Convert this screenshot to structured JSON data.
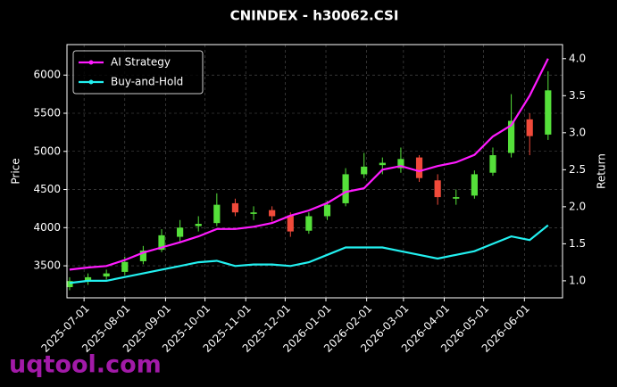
{
  "chart_data": {
    "type": "candlestick",
    "title": "CNINDEX - h30062.CSI",
    "y_label": "Price",
    "y2_label": "Return",
    "watermark": "uqtool.com",
    "x": [
      "2025-06-20",
      "2025-07-04",
      "2025-07-18",
      "2025-08-01",
      "2025-08-15",
      "2025-08-29",
      "2025-09-12",
      "2025-09-26",
      "2025-10-10",
      "2025-10-24",
      "2025-11-07",
      "2025-11-21",
      "2025-12-05",
      "2025-12-19",
      "2026-01-02",
      "2026-01-16",
      "2026-01-30",
      "2026-02-13",
      "2026-02-27",
      "2026-03-13",
      "2026-03-27",
      "2026-04-10",
      "2026-04-24",
      "2026-05-08",
      "2026-05-22",
      "2026-06-05",
      "2026-06-19"
    ],
    "candles": {
      "open": [
        3220,
        3290,
        3360,
        3420,
        3560,
        3710,
        3880,
        4020,
        4060,
        4320,
        4180,
        4230,
        4160,
        3960,
        4150,
        4320,
        4700,
        4820,
        4780,
        4920,
        4620,
        4380,
        4420,
        4720,
        4980,
        5420,
        5220
      ],
      "high": [
        3350,
        3400,
        3450,
        3620,
        3760,
        3980,
        4100,
        4150,
        4450,
        4380,
        4280,
        4280,
        4200,
        4200,
        4350,
        4780,
        4980,
        4920,
        5050,
        4950,
        4700,
        4500,
        4750,
        5050,
        5750,
        5500,
        6050
      ],
      "low": [
        3180,
        3250,
        3320,
        3380,
        3520,
        3680,
        3820,
        3950,
        4020,
        4150,
        4100,
        4080,
        3880,
        3920,
        4100,
        4280,
        4650,
        4700,
        4720,
        4600,
        4300,
        4300,
        4380,
        4680,
        4920,
        4950,
        5150
      ],
      "close": [
        3300,
        3350,
        3400,
        3550,
        3700,
        3900,
        4000,
        4050,
        4300,
        4200,
        4200,
        4150,
        3950,
        4150,
        4300,
        4700,
        4800,
        4850,
        4900,
        4650,
        4400,
        4400,
        4700,
        4950,
        5400,
        5200,
        5800
      ]
    },
    "up_color": "#55e03a",
    "down_color": "#f04a3a",
    "series": [
      {
        "name": "AI Strategy",
        "color": "#ff1aff",
        "axis": "y2",
        "values": [
          1.15,
          1.18,
          1.2,
          1.28,
          1.38,
          1.45,
          1.52,
          1.6,
          1.7,
          1.7,
          1.73,
          1.78,
          1.88,
          1.95,
          2.05,
          2.2,
          2.25,
          2.5,
          2.55,
          2.48,
          2.55,
          2.6,
          2.7,
          2.95,
          3.1,
          3.5,
          4.0
        ]
      },
      {
        "name": "Buy-and-Hold",
        "color": "#22f0f0",
        "axis": "y2",
        "values": [
          0.97,
          1.0,
          1.0,
          1.05,
          1.1,
          1.15,
          1.2,
          1.25,
          1.27,
          1.2,
          1.22,
          1.22,
          1.2,
          1.25,
          1.35,
          1.45,
          1.45,
          1.45,
          1.4,
          1.35,
          1.3,
          1.35,
          1.4,
          1.5,
          1.6,
          1.55,
          1.75
        ]
      }
    ],
    "xlim": [
      "2025-06-18",
      "2026-06-30"
    ],
    "xticks": [
      "2025-07-01",
      "2025-08-01",
      "2025-09-01",
      "2025-10-01",
      "2025-11-01",
      "2025-12-01",
      "2026-01-01",
      "2026-02-01",
      "2026-03-01",
      "2026-04-01",
      "2026-05-01",
      "2026-06-01"
    ],
    "ylim": [
      3080,
      6400
    ],
    "yticks": [
      3500,
      4000,
      4500,
      5000,
      5500,
      6000
    ],
    "y2lim": [
      0.77,
      4.19
    ],
    "y2ticks": [
      {
        "value": 1,
        "label": "1.0"
      },
      1.5,
      {
        "value": 2,
        "label": "2.0"
      },
      2.5,
      {
        "value": 3,
        "label": "3.0"
      },
      3.5,
      {
        "value": 4,
        "label": "4.0"
      }
    ],
    "grid": true,
    "legend": "upper left"
  }
}
